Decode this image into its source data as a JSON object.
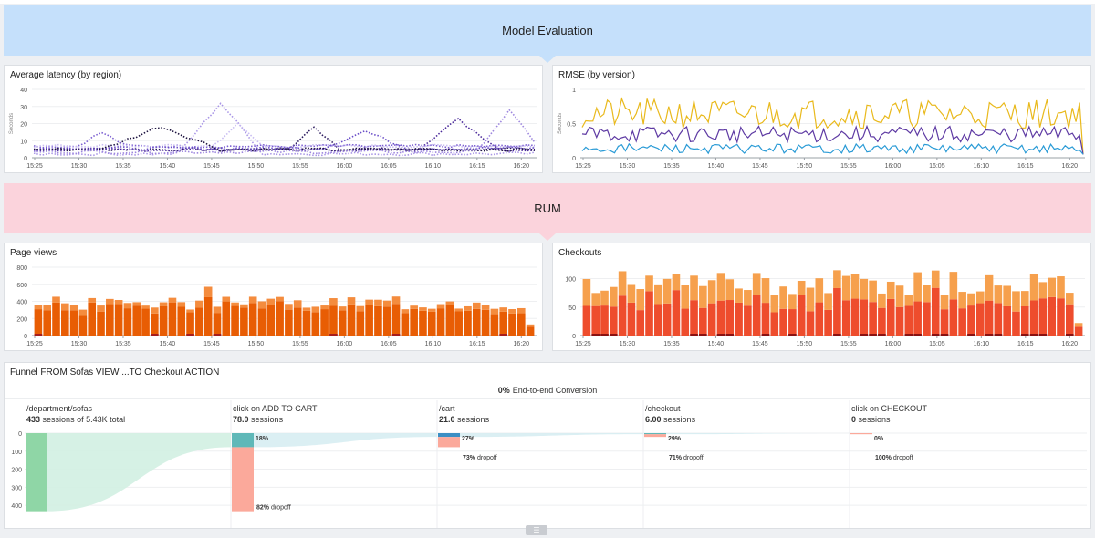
{
  "groups": [
    {
      "title": "Model Evaluation",
      "color": "#c5e0fb"
    },
    {
      "title": "RUM",
      "color": "#fbd3dc"
    }
  ],
  "time_ticks": [
    "15:25",
    "15:30",
    "15:35",
    "15:40",
    "15:45",
    "15:50",
    "15:55",
    "16:00",
    "16:05",
    "16:10",
    "16:15",
    "16:20"
  ],
  "panels": {
    "latency": {
      "title": "Average latency (by region)",
      "chart_data": {
        "type": "line",
        "ylabel": "Seconds",
        "yticks": [
          0,
          10,
          20,
          30,
          40
        ],
        "ylim": [
          0,
          40
        ],
        "line_style": "dotted",
        "colors": [
          "#2b1a5e",
          "#4b2a9a",
          "#7b5fd1",
          "#a996e6",
          "#c9bdf2",
          "#6a4ec8",
          "#1e1440",
          "#9d86de"
        ]
      }
    },
    "rmse": {
      "title": "RMSE (by version)",
      "chart_data": {
        "type": "line",
        "ylabel": "Seconds",
        "yticks": [
          0,
          0.5,
          1
        ],
        "ylim": [
          0,
          1
        ],
        "colors": [
          "#e9b91c",
          "#5e3aa3",
          "#2a9bd6"
        ]
      }
    },
    "pageviews": {
      "title": "Page views",
      "chart_data": {
        "type": "bar",
        "yticks": [
          0,
          200,
          400,
          600,
          800
        ],
        "ylim": [
          0,
          800
        ],
        "colors": [
          "#e85d04",
          "#f48c3e",
          "#a71d1d"
        ]
      }
    },
    "checkouts": {
      "title": "Checkouts",
      "chart_data": {
        "type": "bar",
        "yticks": [
          0,
          50,
          100
        ],
        "ylim": [
          0,
          120
        ],
        "colors": [
          "#ee4d2d",
          "#f6a04d",
          "#8a1212"
        ]
      }
    }
  },
  "funnel": {
    "title": "Funnel FROM Sofas VIEW ...TO Checkout ACTION",
    "conversion_value": "0%",
    "conversion_label": "End-to-end Conversion",
    "yticks": [
      "0",
      "100",
      "200",
      "300",
      "400"
    ],
    "steps": [
      {
        "name": "/department/sofas",
        "count": "433",
        "count_suffix": "sessions of 5.43K total",
        "value": 433,
        "conv": "",
        "dropoff": ""
      },
      {
        "name": "click on ADD TO CART",
        "count": "78.0",
        "count_suffix": "sessions",
        "value": 78,
        "conv": "18%",
        "dropoff": "82% dropoff"
      },
      {
        "name": "/cart",
        "count": "21.0",
        "count_suffix": "sessions",
        "value": 21,
        "conv": "27%",
        "dropoff": "73% dropoff"
      },
      {
        "name": "/checkout",
        "count": "6.00",
        "count_suffix": "sessions",
        "value": 6,
        "conv": "29%",
        "dropoff": "71% dropoff"
      },
      {
        "name": "click on CHECKOUT",
        "count": "0",
        "count_suffix": "sessions",
        "value": 0,
        "conv": "0%",
        "dropoff": "100% dropoff"
      }
    ],
    "colors": {
      "first": "#8fd6a6",
      "kept": "#5fb8b8",
      "cart_kept": "#3b8fc4",
      "drop": "#fba99b",
      "flow": "#d2efe2"
    }
  },
  "drag_handle_icon": "grip-lines-icon"
}
